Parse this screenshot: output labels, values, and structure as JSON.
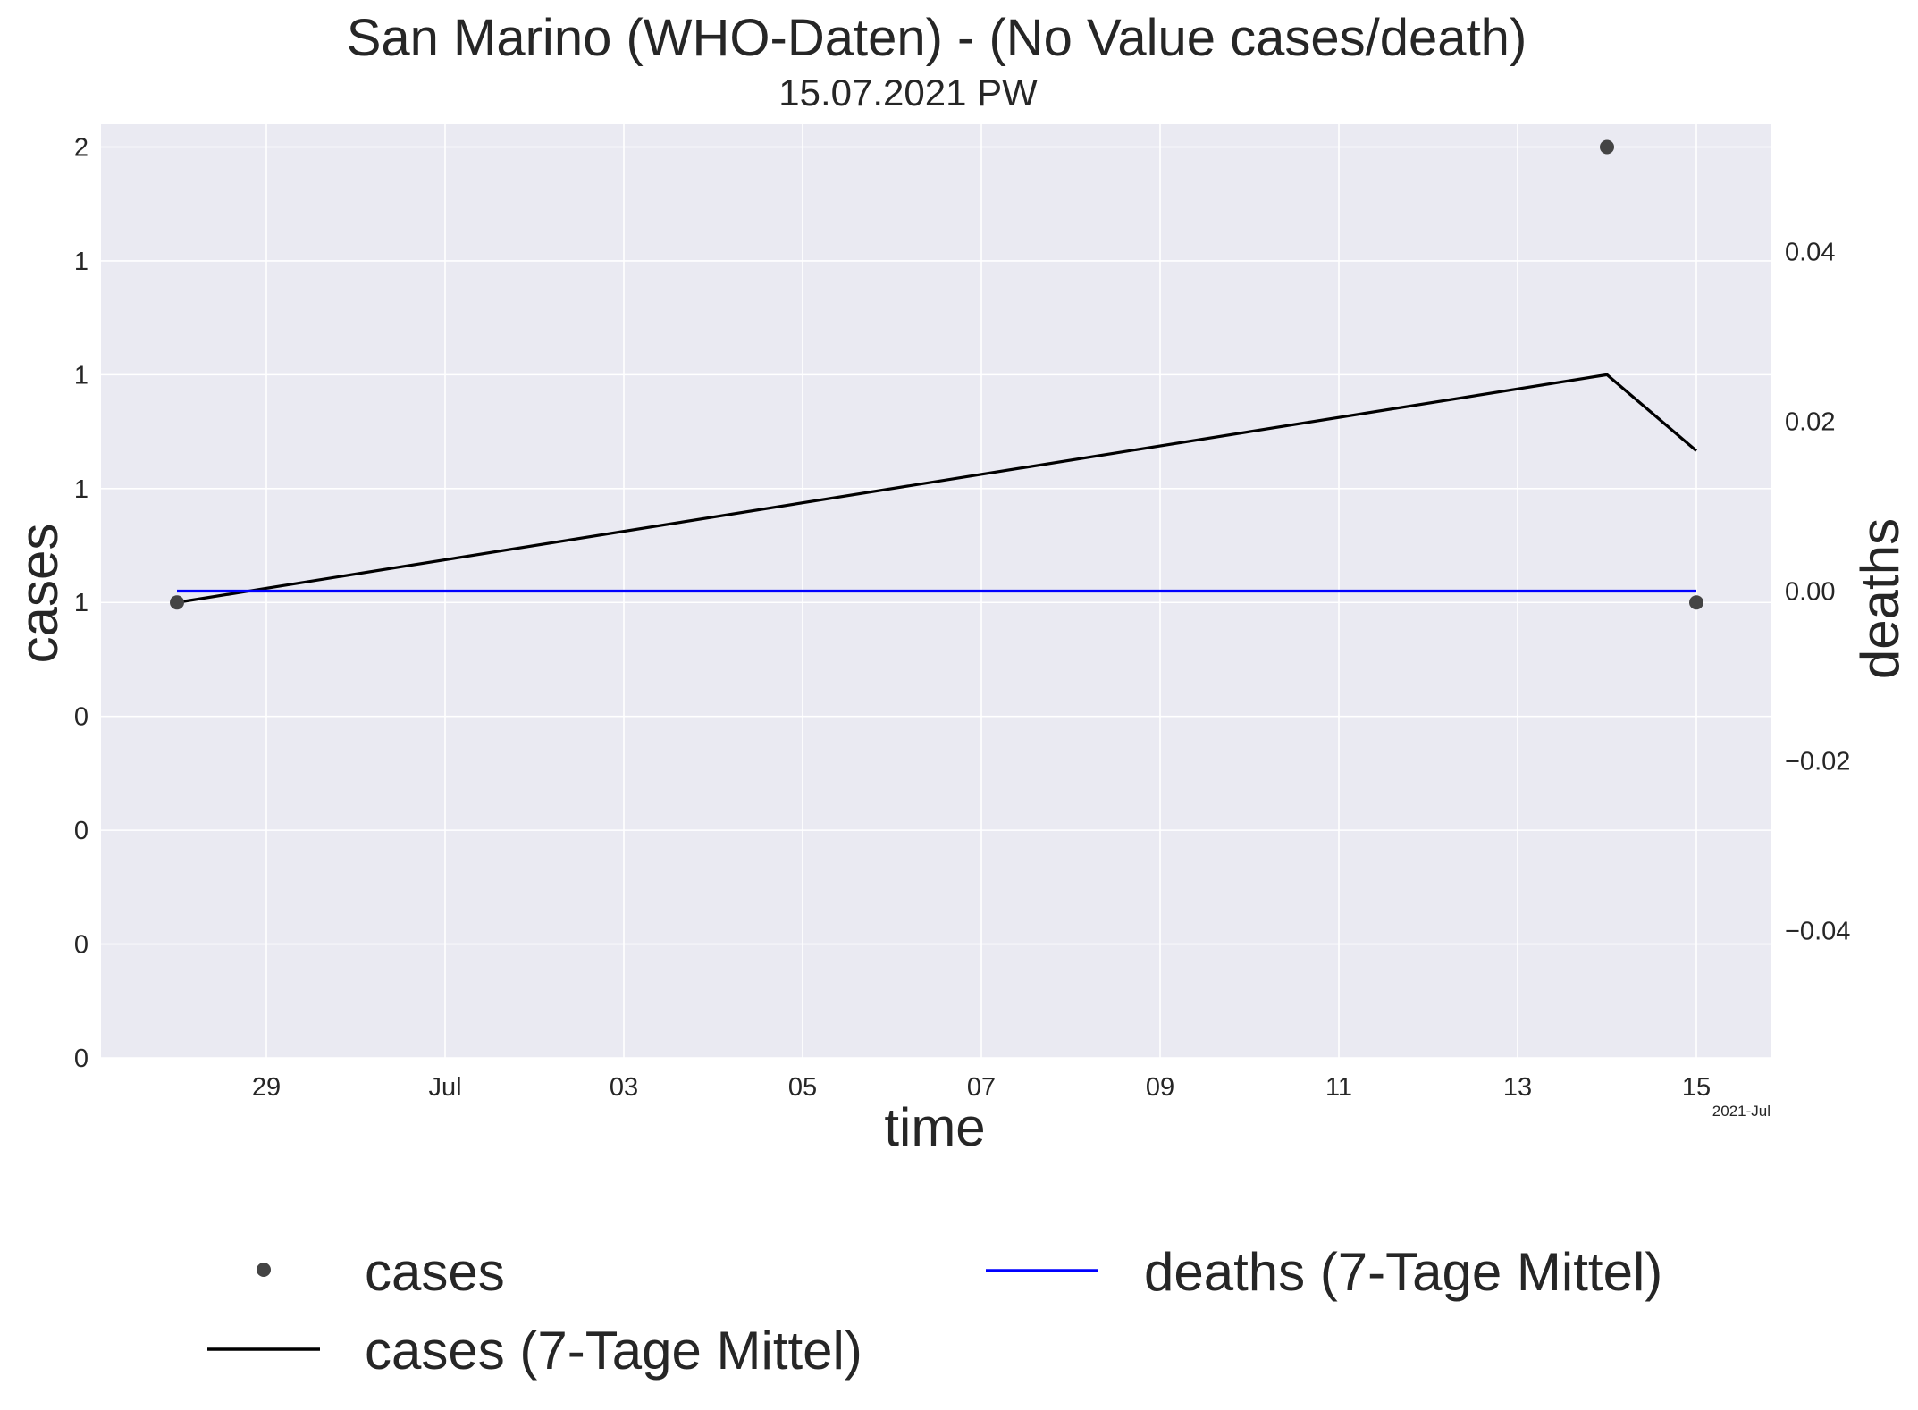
{
  "chart_data": {
    "type": "line",
    "title": "San Marino (WHO-Daten) - (No Value cases/death)",
    "subtitle": "15.07.2021 PW",
    "xlabel": "time",
    "ylabel": "cases",
    "y2label": "deaths",
    "x_offset_label": "2021-Jul",
    "x_domain": [
      "2021-06-27",
      "2021-07-15"
    ],
    "x_ticks": [
      {
        "date": "2021-06-29",
        "label": "29"
      },
      {
        "date": "2021-07-01",
        "label": "Jul"
      },
      {
        "date": "2021-07-03",
        "label": "03"
      },
      {
        "date": "2021-07-05",
        "label": "05"
      },
      {
        "date": "2021-07-07",
        "label": "07"
      },
      {
        "date": "2021-07-09",
        "label": "09"
      },
      {
        "date": "2021-07-11",
        "label": "11"
      },
      {
        "date": "2021-07-13",
        "label": "13"
      },
      {
        "date": "2021-07-15",
        "label": "15"
      }
    ],
    "ylim": [
      0,
      2.05
    ],
    "y_ticks": [
      {
        "value": 0,
        "label": "0"
      },
      {
        "value": 0.25,
        "label": "0"
      },
      {
        "value": 0.5,
        "label": "0"
      },
      {
        "value": 0.75,
        "label": "0"
      },
      {
        "value": 1.0,
        "label": "1"
      },
      {
        "value": 1.25,
        "label": "1"
      },
      {
        "value": 1.5,
        "label": "1"
      },
      {
        "value": 1.75,
        "label": "1"
      },
      {
        "value": 2.0,
        "label": "2"
      }
    ],
    "y2lim": [
      -0.055,
      0.055
    ],
    "y2_ticks": [
      {
        "value": -0.04,
        "label": "−0.04"
      },
      {
        "value": -0.02,
        "label": "−0.02"
      },
      {
        "value": 0.0,
        "label": "0.00"
      },
      {
        "value": 0.02,
        "label": "0.02"
      },
      {
        "value": 0.04,
        "label": "0.04"
      }
    ],
    "grid": true,
    "legend_position": "bottom",
    "colors": {
      "plot_background": "#eaeaf2",
      "cases_points": "#444444",
      "cases_avg": "#000000",
      "deaths_avg": "#0000ff",
      "y2label": "#0000ff"
    },
    "series": [
      {
        "name": "cases",
        "kind": "scatter",
        "axis": "left",
        "points": [
          {
            "x": "2021-06-28",
            "y": 1
          },
          {
            "x": "2021-07-14",
            "y": 2
          },
          {
            "x": "2021-07-15",
            "y": 1
          }
        ]
      },
      {
        "name": "cases (7-Tage Mittel)",
        "kind": "line",
        "axis": "left",
        "points": [
          {
            "x": "2021-06-28",
            "y": 1.0
          },
          {
            "x": "2021-07-14",
            "y": 1.5
          },
          {
            "x": "2021-07-15",
            "y": 1.333
          }
        ]
      },
      {
        "name": "deaths (7-Tage Mittel)",
        "kind": "line",
        "axis": "right",
        "points": [
          {
            "x": "2021-06-28",
            "y": 0.0
          },
          {
            "x": "2021-07-15",
            "y": 0.0
          }
        ]
      }
    ]
  }
}
